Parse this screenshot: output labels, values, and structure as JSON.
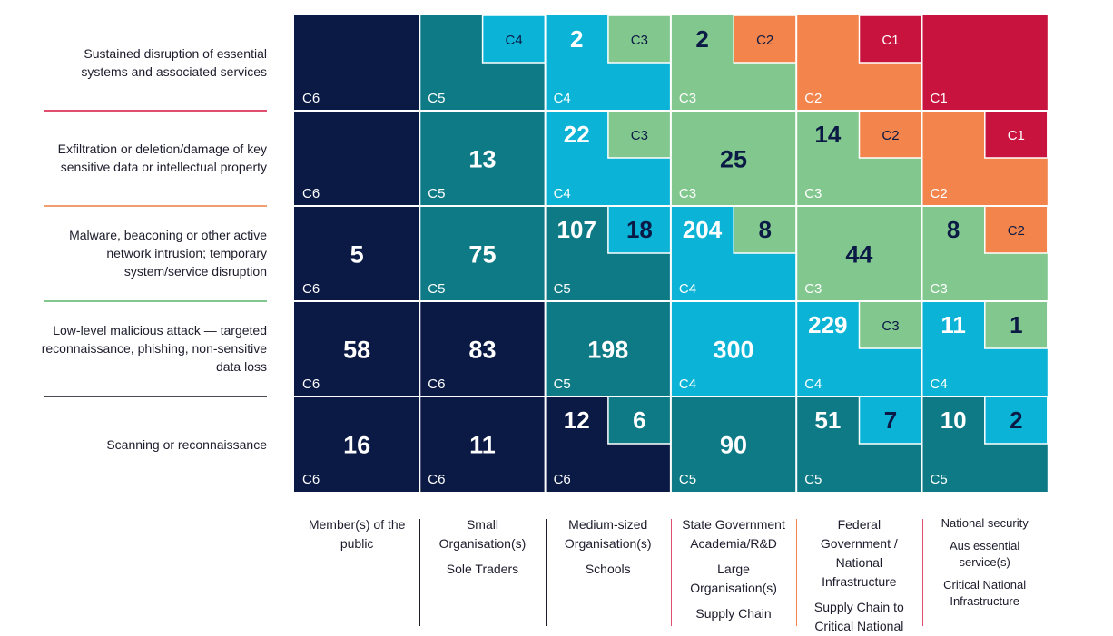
{
  "colors": {
    "C1": "#c8133f",
    "C2": "#f2844c",
    "C3": "#82c88e",
    "C4": "#0bb4d6",
    "C5": "#0e7a86",
    "C6": "#0b1a45",
    "row_separators": [
      "#e0506e",
      "#f0a070",
      "#82c88e",
      "#4a4a55"
    ]
  },
  "row_labels": [
    "Sustained disruption of essential systems and associated services",
    "Exfiltration or deletion/damage of key sensitive data or intellectual property",
    "Malware, beaconing or other active network intrusion; temporary system/service disruption",
    "Low-level malicious attack — targeted reconnaissance, phishing, non-sensitive data loss",
    "Scanning or reconnaissance"
  ],
  "columns": [
    {
      "lines": [
        "Member(s) of the",
        "public"
      ]
    },
    {
      "lines": [
        "Small",
        "Organisation(s)",
        "Sole Traders"
      ]
    },
    {
      "lines": [
        "Medium-sized",
        "Organisation(s)",
        "Schools"
      ]
    },
    {
      "lines": [
        "State Government",
        "Academia/R&D",
        "Large",
        "Organisation(s)",
        "Supply Chain"
      ]
    },
    {
      "lines": [
        "Federal",
        "Government /",
        "National",
        "Infrastructure",
        "Supply Chain to",
        "Critical National"
      ]
    },
    {
      "lines": [
        "National security",
        "Aus essential",
        "service(s)",
        "Critical National",
        "Infrastructure"
      ]
    }
  ],
  "chart_data": {
    "type": "heatmap",
    "rows": [
      "Sustained disruption of essential systems and associated services",
      "Exfiltration or deletion/damage of key sensitive data or intellectual property",
      "Malware, beaconing or other active network intrusion; temporary system/service disruption",
      "Low-level malicious attack — targeted reconnaissance, phishing, non-sensitive data loss",
      "Scanning or reconnaissance"
    ],
    "columns": [
      "Member(s) of the public",
      "Small Organisation(s) / Sole Traders",
      "Medium-sized Organisation(s) / Schools",
      "State Government / Academia/R&D / Large Organisation(s) / Supply Chain",
      "Federal Government / National Infrastructure / Supply Chain to Critical National",
      "National security / Aus essential service(s) / Critical National Infrastructure"
    ],
    "cells": [
      [
        {
          "base": "C6",
          "count": null
        },
        {
          "base": "C5",
          "count": null,
          "inset": {
            "cat": "C4",
            "count": null
          }
        },
        {
          "base": "C4",
          "count": 2,
          "inset": {
            "cat": "C3",
            "count": null
          }
        },
        {
          "base": "C3",
          "count": 2,
          "inset": {
            "cat": "C2",
            "count": null
          }
        },
        {
          "base": "C2",
          "count": null,
          "inset": {
            "cat": "C1",
            "count": null
          }
        },
        {
          "base": "C1",
          "count": null
        }
      ],
      [
        {
          "base": "C6",
          "count": null
        },
        {
          "base": "C5",
          "count": 13
        },
        {
          "base": "C4",
          "count": 22,
          "inset": {
            "cat": "C3",
            "count": null
          }
        },
        {
          "base": "C3",
          "count": 25
        },
        {
          "base": "C3",
          "count": 14,
          "inset": {
            "cat": "C2",
            "count": null
          }
        },
        {
          "base": "C2",
          "count": null,
          "inset": {
            "cat": "C1",
            "count": null
          }
        }
      ],
      [
        {
          "base": "C6",
          "count": 5
        },
        {
          "base": "C5",
          "count": 75
        },
        {
          "base": "C5",
          "count": 107,
          "inset": {
            "cat": "C4",
            "count": 18
          }
        },
        {
          "base": "C4",
          "count": 204,
          "inset": {
            "cat": "C3",
            "count": 8
          }
        },
        {
          "base": "C3",
          "count": 44
        },
        {
          "base": "C3",
          "count": 8,
          "inset": {
            "cat": "C2",
            "count": null
          }
        }
      ],
      [
        {
          "base": "C6",
          "count": 58
        },
        {
          "base": "C6",
          "count": 83
        },
        {
          "base": "C5",
          "count": 198
        },
        {
          "base": "C4",
          "count": 300
        },
        {
          "base": "C4",
          "count": 229,
          "inset": {
            "cat": "C3",
            "count": null
          }
        },
        {
          "base": "C4",
          "count": 11,
          "inset": {
            "cat": "C3",
            "count": 1
          }
        }
      ],
      [
        {
          "base": "C6",
          "count": 16
        },
        {
          "base": "C6",
          "count": 11
        },
        {
          "base": "C6",
          "count": 12,
          "inset": {
            "cat": "C5",
            "count": 6
          }
        },
        {
          "base": "C5",
          "count": 90
        },
        {
          "base": "C5",
          "count": 51,
          "inset": {
            "cat": "C4",
            "count": 7
          }
        },
        {
          "base": "C5",
          "count": 10,
          "inset": {
            "cat": "C4",
            "count": 2
          }
        }
      ]
    ]
  }
}
